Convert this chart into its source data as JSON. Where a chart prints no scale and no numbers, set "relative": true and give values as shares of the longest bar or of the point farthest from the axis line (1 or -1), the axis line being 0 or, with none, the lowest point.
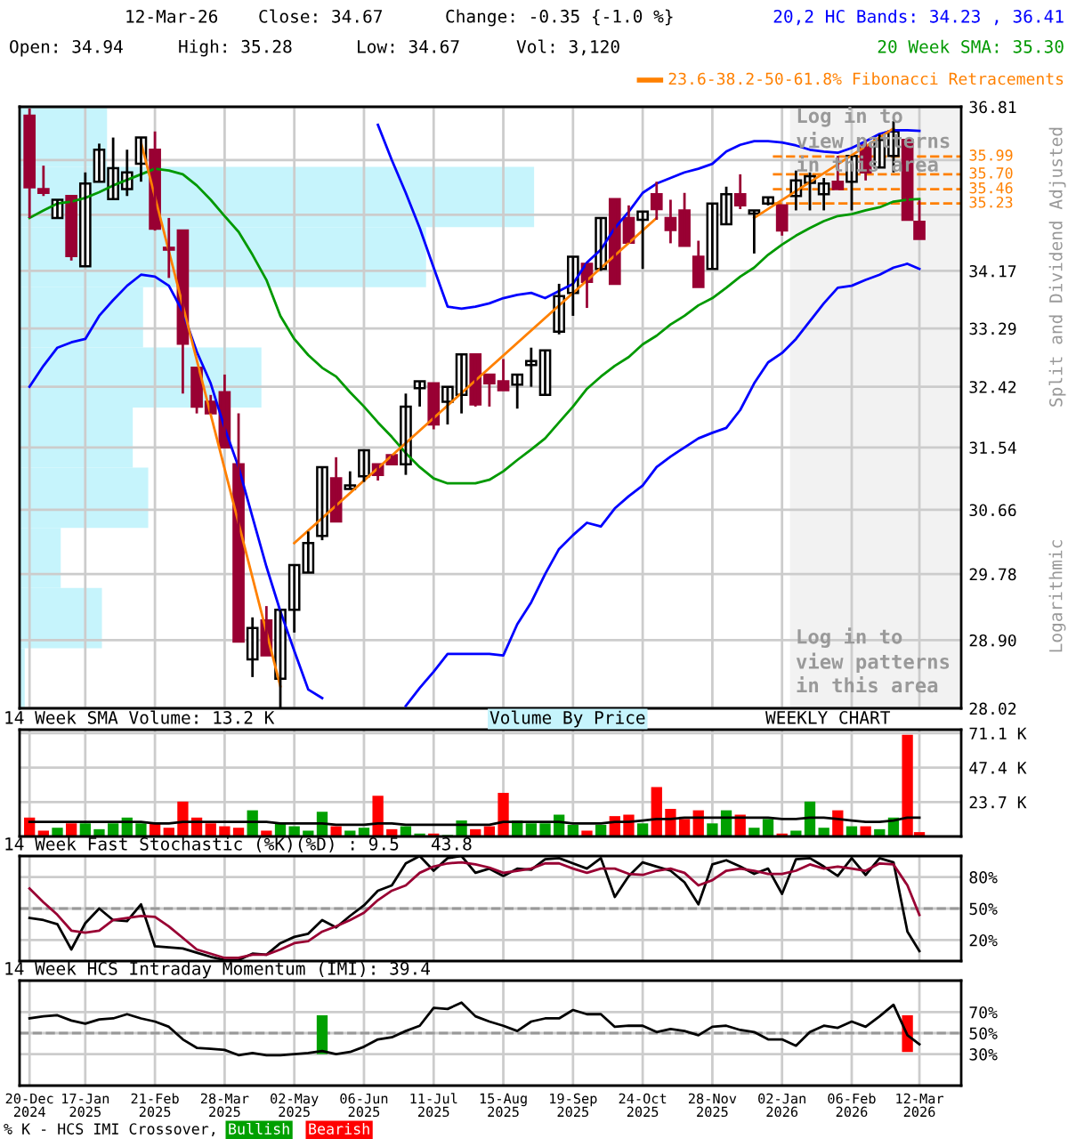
{
  "chart_data": [
    {
      "type": "candlestick",
      "colors": [
        "#990033",
        "#990033",
        "#ffffff",
        "#990033",
        "#ffffff",
        "#ffffff",
        "#ffffff",
        "#ffffff",
        "#ffffff",
        "#990033",
        "#990033",
        "#990033",
        "#990033",
        "#990033",
        "#990033",
        "#990033",
        "#ffffff",
        "#990033",
        "#ffffff",
        "#ffffff",
        "#ffffff",
        "#ffffff",
        "#990033",
        "#ffffff",
        "#ffffff",
        "#990033",
        "#990033",
        "#ffffff",
        "#ffffff",
        "#990033",
        "#ffffff",
        "#ffffff",
        "#990033",
        "#990033",
        "#990033",
        "#ffffff",
        "#ffffff",
        "#ffffff",
        "#ffffff",
        "#ffffff",
        "#990033",
        "#ffffff",
        "#990033",
        "#990033",
        "#ffffff",
        "#990033",
        "#990033",
        "#990033",
        "#990033",
        "#ffffff",
        "#ffffff",
        "#990033",
        "#ffffff",
        "#ffffff",
        "#990033",
        "#ffffff",
        "#ffffff",
        "#ffffff",
        "#990033",
        "#ffffff",
        "#990033",
        "#ffffff",
        "#ffffff",
        "#990033",
        "#990033"
      ],
      "log": true,
      "grid": true,
      "tick_labels": "y",
      "legend": "top right",
      "x": [
        "2024-12-20",
        "2024-12-27",
        "2025-01-03",
        "2025-01-10",
        "2025-01-17",
        "2025-01-24",
        "2025-01-31",
        "2025-02-07",
        "2025-02-14",
        "2025-02-21",
        "2025-02-28",
        "2025-03-07",
        "2025-03-14",
        "2025-03-21",
        "2025-03-28",
        "2025-04-04",
        "2025-04-11",
        "2025-04-18",
        "2025-04-25",
        "2025-05-02",
        "2025-05-09",
        "2025-05-16",
        "2025-05-23",
        "2025-05-30",
        "2025-06-06",
        "2025-06-13",
        "2025-06-20",
        "2025-06-27",
        "2025-07-04",
        "2025-07-11",
        "2025-07-18",
        "2025-07-25",
        "2025-08-01",
        "2025-08-08",
        "2025-08-15",
        "2025-08-22",
        "2025-08-29",
        "2025-09-05",
        "2025-09-12",
        "2025-09-19",
        "2025-09-26",
        "2025-10-03",
        "2025-10-10",
        "2025-10-17",
        "2025-10-24",
        "2025-10-31",
        "2025-11-07",
        "2025-11-14",
        "2025-11-21",
        "2025-11-28",
        "2025-12-05",
        "2025-12-12",
        "2025-12-19",
        "2025-12-26",
        "2026-01-02",
        "2026-01-09",
        "2026-01-16",
        "2026-01-23",
        "2026-01-30",
        "2026-02-06",
        "2026-02-13",
        "2026-02-20",
        "2026-02-27",
        "2026-03-06",
        "2026-03-12"
      ],
      "ohlc": [
        [
          36.66,
          36.78,
          35.0,
          35.49
        ],
        [
          35.46,
          35.84,
          35.35,
          35.4
        ],
        [
          35.0,
          35.29,
          35.0,
          35.29
        ],
        [
          35.35,
          35.35,
          34.33,
          34.4
        ],
        [
          34.24,
          35.73,
          34.24,
          35.55
        ],
        [
          35.58,
          36.2,
          35.58,
          36.1
        ],
        [
          35.3,
          36.3,
          35.3,
          35.8
        ],
        [
          35.46,
          36.1,
          35.35,
          35.73
        ],
        [
          35.87,
          36.3,
          35.58,
          36.3
        ],
        [
          36.1,
          36.4,
          34.8,
          34.83
        ],
        [
          34.53,
          35.0,
          34.06,
          34.5
        ],
        [
          34.8,
          34.8,
          32.32,
          33.06
        ],
        [
          32.7,
          32.7,
          32.03,
          32.13
        ],
        [
          32.2,
          32.3,
          32.03,
          32.03
        ],
        [
          32.34,
          32.6,
          31.54,
          31.54
        ],
        [
          31.3,
          32.03,
          28.88,
          28.88
        ],
        [
          28.65,
          29.2,
          28.42,
          29.06
        ],
        [
          29.16,
          29.35,
          28.7,
          28.7
        ],
        [
          28.4,
          29.3,
          28.03,
          29.3
        ],
        [
          29.3,
          29.9,
          29.0,
          29.9
        ],
        [
          29.8,
          30.36,
          29.8,
          30.2
        ],
        [
          30.3,
          31.26,
          30.24,
          31.26
        ],
        [
          31.1,
          31.4,
          30.5,
          30.5
        ],
        [
          30.95,
          31.2,
          30.95,
          31.0
        ],
        [
          31.13,
          31.5,
          31.05,
          31.5
        ],
        [
          31.3,
          31.3,
          31.07,
          31.15
        ],
        [
          31.43,
          31.43,
          31.3,
          31.3
        ],
        [
          31.3,
          32.32,
          31.15,
          32.13
        ],
        [
          32.4,
          32.5,
          32.13,
          32.5
        ],
        [
          32.47,
          32.47,
          31.8,
          31.87
        ],
        [
          32.2,
          32.42,
          31.87,
          32.42
        ],
        [
          32.3,
          32.9,
          32.03,
          32.9
        ],
        [
          32.9,
          32.9,
          32.13,
          32.16
        ],
        [
          32.6,
          32.6,
          32.13,
          32.47
        ],
        [
          32.5,
          32.83,
          32.37,
          32.37
        ],
        [
          32.45,
          32.6,
          32.1,
          32.6
        ],
        [
          32.74,
          33.0,
          32.42,
          32.8
        ],
        [
          32.3,
          32.96,
          32.3,
          32.96
        ],
        [
          33.24,
          33.97,
          33.2,
          33.78
        ],
        [
          33.83,
          34.39,
          33.48,
          34.39
        ],
        [
          34.28,
          34.28,
          33.6,
          34.0
        ],
        [
          34.2,
          35.0,
          34.17,
          35.0
        ],
        [
          35.3,
          35.3,
          33.97,
          33.97
        ],
        [
          35.0,
          35.2,
          34.61,
          34.61
        ],
        [
          34.97,
          35.1,
          34.2,
          35.1
        ],
        [
          35.38,
          35.58,
          34.97,
          35.14
        ],
        [
          35.0,
          35.29,
          34.6,
          34.81
        ],
        [
          35.12,
          35.4,
          34.56,
          34.56
        ],
        [
          34.39,
          34.64,
          33.92,
          33.92
        ],
        [
          34.2,
          35.23,
          34.2,
          35.23
        ],
        [
          34.9,
          35.5,
          34.9,
          35.38
        ],
        [
          35.38,
          35.7,
          35.14,
          35.2
        ],
        [
          35.07,
          35.12,
          34.44,
          35.12
        ],
        [
          35.23,
          35.33,
          35.2,
          35.33
        ],
        [
          35.2,
          35.2,
          34.72,
          34.8
        ],
        [
          35.35,
          35.76,
          35.12,
          35.6
        ],
        [
          35.56,
          35.73,
          35.12,
          35.67
        ],
        [
          35.38,
          35.64,
          35.12,
          35.55
        ],
        [
          35.58,
          36.0,
          35.46,
          35.46
        ],
        [
          35.58,
          36.0,
          35.12,
          36.0
        ],
        [
          36.17,
          36.26,
          35.6,
          35.73
        ],
        [
          35.81,
          36.35,
          35.81,
          36.26
        ],
        [
          36.0,
          36.57,
          35.73,
          36.4
        ],
        [
          36.26,
          36.26,
          34.97,
          34.97
        ],
        [
          34.94,
          35.28,
          34.67,
          34.67
        ]
      ],
      "ylim": [
        28.02,
        36.81
      ],
      "yticks": [
        28.02,
        {
          "value": 28.9,
          "label": "28.90"
        },
        29.78,
        30.66,
        31.54,
        32.42,
        33.29,
        34.17,
        {
          "value": 35.05,
          "label": null
        },
        {
          "value": 35.93,
          "label": null
        },
        36.81
      ],
      "xlim": [
        "2024-12-15",
        "2026-04-02"
      ],
      "xticks": [
        {
          "value": "2024-12-20",
          "label": null
        },
        {
          "value": "2025-01-17",
          "label": null
        },
        {
          "value": "2025-02-21",
          "label": null
        },
        {
          "value": "2025-03-28",
          "label": null
        },
        {
          "value": "2025-05-02",
          "label": null
        },
        {
          "value": "2025-06-06",
          "label": null
        },
        {
          "value": "2025-07-11",
          "label": null
        },
        {
          "value": "2025-08-15",
          "label": null
        },
        {
          "value": "2025-09-19",
          "label": null
        },
        {
          "value": "2025-10-24",
          "label": null
        },
        {
          "value": "2025-11-28",
          "label": null
        },
        {
          "value": "2026-01-02",
          "label": null
        },
        {
          "value": "2026-02-06",
          "label": null
        },
        {
          "value": "2026-03-12",
          "label": null
        }
      ],
      "series": [
        {
          "type": "line",
          "name": "20,2 HC Bands: 34.23 , 36.41",
          "color": "#0000ff",
          "values": [
            null,
            null,
            null,
            null,
            null,
            null,
            null,
            null,
            null,
            null,
            null,
            null,
            null,
            null,
            null,
            null,
            null,
            null,
            null,
            null,
            null,
            null,
            null,
            null,
            null,
            36.51,
            35.93,
            35.4,
            34.84,
            34.22,
            33.62,
            33.59,
            33.62,
            33.67,
            33.75,
            33.8,
            33.83,
            33.75,
            33.86,
            33.97,
            34.3,
            34.5,
            34.84,
            35.1,
            35.4,
            35.55,
            35.64,
            35.73,
            35.79,
            35.87,
            36.07,
            36.18,
            36.24,
            36.24,
            36.22,
            36.17,
            36.1,
            36.07,
            36.05,
            36.13,
            36.24,
            36.36,
            36.42,
            36.42,
            36.41
          ]
        },
        {
          "type": "line",
          "color": "#0000ff",
          "values": [
            32.42,
            32.73,
            33.0,
            33.08,
            33.13,
            33.48,
            33.72,
            33.94,
            34.11,
            34.08,
            33.94,
            33.54,
            32.94,
            32.47,
            31.82,
            31.26,
            30.56,
            29.88,
            29.28,
            28.76,
            28.26,
            28.15,
            null,
            null,
            null,
            null,
            null,
            28.05,
            28.28,
            28.49,
            28.72,
            28.72,
            28.72,
            28.72,
            28.7,
            29.11,
            29.4,
            29.78,
            30.12,
            30.31,
            30.48,
            30.43,
            30.68,
            30.85,
            31.0,
            31.26,
            31.41,
            31.54,
            31.67,
            31.75,
            31.82,
            32.08,
            32.47,
            32.78,
            32.92,
            33.13,
            33.4,
            33.67,
            33.91,
            33.94,
            34.03,
            34.11,
            34.22,
            34.28,
            34.2
          ]
        },
        {
          "type": "line",
          "name": "20 Week SMA: 35.30",
          "color": "#009900",
          "values": [
            35.0,
            35.12,
            35.23,
            35.26,
            35.32,
            35.41,
            35.52,
            35.61,
            35.7,
            35.79,
            35.76,
            35.7,
            35.52,
            35.29,
            35.03,
            34.78,
            34.42,
            34.03,
            33.48,
            33.13,
            32.89,
            32.7,
            32.57,
            32.34,
            32.13,
            31.9,
            31.69,
            31.46,
            31.26,
            31.1,
            31.03,
            31.03,
            31.03,
            31.08,
            31.2,
            31.36,
            31.51,
            31.67,
            31.9,
            32.13,
            32.39,
            32.57,
            32.73,
            32.86,
            33.05,
            33.18,
            33.35,
            33.48,
            33.64,
            33.75,
            33.91,
            34.08,
            34.22,
            34.42,
            34.58,
            34.72,
            34.84,
            34.95,
            35.03,
            35.06,
            35.12,
            35.17,
            35.26,
            35.29,
            35.3
          ]
        },
        {
          "type": "line",
          "name": "23.6-38.2-50-61.8% Fibonacci Retracements",
          "color": "#ff8000",
          "x": [
            "2025-02-14",
            "2025-04-25"
          ],
          "values": [
            36.22,
            28.3
          ]
        },
        {
          "type": "line",
          "color": "#ff8000",
          "x": [
            "2025-05-02",
            "2025-10-31"
          ],
          "values": [
            30.2,
            35.0
          ]
        },
        {
          "type": "line",
          "color": "#ff8000",
          "x": [
            "2025-12-19",
            "2026-02-27"
          ],
          "values": [
            35.0,
            36.45
          ]
        }
      ],
      "ref_lines": [
        {
          "axis": "y",
          "value": 35.99,
          "label": "35.99",
          "color": "#ff8000",
          "line_style": "dashed"
        },
        {
          "axis": "y",
          "value": 35.7,
          "label": "35.70",
          "color": "#ff8000",
          "line_style": "dashed"
        },
        {
          "axis": "y",
          "value": 35.46,
          "label": "35.46",
          "color": "#ff8000",
          "line_style": "dashed"
        },
        {
          "axis": "y",
          "value": 35.23,
          "label": "35.23",
          "color": "#ff8000",
          "line_style": "dashed"
        }
      ],
      "bands": [
        {
          "axis": "x",
          "from": "2026-01-06",
          "to": "2026-04-02",
          "label": "Log in to\nview patterns\nin this area",
          "color": "#f2f2f2"
        }
      ],
      "annotations": [
        "12-Mar-26",
        "Close: 34.67",
        "Change: -0.35 {-1.0 %}",
        "Open: 34.94",
        "High: 35.28",
        "Low: 34.67",
        "Vol: 3,120",
        "Split and Dividend Adjusted",
        "Logarithmic",
        "Log in to\nview patterns\nin this area"
      ]
    },
    {
      "type": "bar",
      "orientation": "horizontal",
      "relative": true,
      "title": "Volume By Price",
      "color": "#c6f4fc",
      "categories": [
        null,
        null,
        null,
        null,
        null,
        null,
        null,
        null,
        null,
        null
      ],
      "values": [
        0.17,
        1,
        0.79,
        0.24,
        0.47,
        0.22,
        0.25,
        0.08,
        0.16,
        0.01
      ]
    },
    {
      "type": "bar",
      "title": "14 Week SMA Volume: 13.2 K",
      "grid": true,
      "tick_labels": "y",
      "x": [
        "2024-12-20",
        "2024-12-27",
        "2025-01-03",
        "2025-01-10",
        "2025-01-17",
        "2025-01-24",
        "2025-01-31",
        "2025-02-07",
        "2025-02-14",
        "2025-02-21",
        "2025-02-28",
        "2025-03-07",
        "2025-03-14",
        "2025-03-21",
        "2025-03-28",
        "2025-04-04",
        "2025-04-11",
        "2025-04-18",
        "2025-04-25",
        "2025-05-02",
        "2025-05-09",
        "2025-05-16",
        "2025-05-23",
        "2025-05-30",
        "2025-06-06",
        "2025-06-13",
        "2025-06-20",
        "2025-06-27",
        "2025-07-04",
        "2025-07-11",
        "2025-07-18",
        "2025-07-25",
        "2025-08-01",
        "2025-08-08",
        "2025-08-15",
        "2025-08-22",
        "2025-08-29",
        "2025-09-05",
        "2025-09-12",
        "2025-09-19",
        "2025-09-26",
        "2025-10-03",
        "2025-10-10",
        "2025-10-17",
        "2025-10-24",
        "2025-10-31",
        "2025-11-07",
        "2025-11-14",
        "2025-11-21",
        "2025-11-28",
        "2025-12-05",
        "2025-12-12",
        "2025-12-19",
        "2025-12-26",
        "2026-01-02",
        "2026-01-09",
        "2026-01-16",
        "2026-01-23",
        "2026-01-30",
        "2026-02-06",
        "2026-02-13",
        "2026-02-20",
        "2026-02-27",
        "2026-03-06",
        "2026-03-12"
      ],
      "series": [
        {
          "type": "bar",
          "values": [
            13,
            4,
            6,
            9,
            9,
            5,
            9,
            13,
            9,
            9,
            6,
            24,
            13,
            9,
            7,
            6,
            18,
            4,
            9,
            7,
            4,
            17,
            7,
            4,
            6,
            28,
            5,
            7,
            2,
            2,
            1,
            11,
            5,
            7,
            30,
            11,
            9,
            9,
            15,
            8,
            4,
            8,
            14,
            15,
            9,
            34,
            19,
            12,
            18,
            9,
            18,
            15,
            6,
            12,
            2,
            4,
            24,
            6,
            18,
            7,
            7,
            5,
            13,
            70,
            3
          ],
          "colors": [
            "#ff0000",
            "#ff0000",
            "#00a000",
            "#ff0000",
            "#00a000",
            "#00a000",
            "#00a000",
            "#00a000",
            "#00a000",
            "#ff0000",
            "#ff0000",
            "#ff0000",
            "#ff0000",
            "#ff0000",
            "#ff0000",
            "#ff0000",
            "#00a000",
            "#ff0000",
            "#00a000",
            "#00a000",
            "#00a000",
            "#00a000",
            "#ff0000",
            "#00a000",
            "#00a000",
            "#ff0000",
            "#ff0000",
            "#00a000",
            "#00a000",
            "#ff0000",
            "#00a000",
            "#00a000",
            "#ff0000",
            "#ff0000",
            "#ff0000",
            "#00a000",
            "#00a000",
            "#00a000",
            "#00a000",
            "#00a000",
            "#ff0000",
            "#00a000",
            "#ff0000",
            "#ff0000",
            "#00a000",
            "#ff0000",
            "#ff0000",
            "#ff0000",
            "#ff0000",
            "#00a000",
            "#00a000",
            "#ff0000",
            "#00a000",
            "#00a000",
            "#ff0000",
            "#00a000",
            "#00a000",
            "#00a000",
            "#ff0000",
            "#00a000",
            "#ff0000",
            "#00a000",
            "#00a000",
            "#ff0000",
            "#ff0000"
          ]
        },
        {
          "type": "line",
          "color": "#000000",
          "values": [
            10,
            10,
            10,
            10,
            10,
            10,
            10,
            10,
            10,
            9,
            9,
            10,
            10,
            10,
            10,
            10,
            10,
            10,
            9,
            9,
            9,
            9,
            8,
            8,
            8,
            9,
            9,
            8,
            8,
            8,
            8,
            8,
            8,
            8,
            10,
            10,
            10,
            10,
            10,
            9,
            9,
            9,
            10,
            10,
            11,
            12,
            12,
            13,
            13,
            13,
            13,
            13,
            13,
            13,
            12,
            12,
            13,
            13,
            12,
            11,
            10,
            10,
            11,
            13,
            13
          ]
        }
      ],
      "ylim": [
        0,
        73.5
      ],
      "yticks": [
        {
          "value": 23.7,
          "label": "23.7 K"
        },
        {
          "value": 47.4,
          "label": "47.4 K"
        },
        {
          "value": 71.1,
          "label": "71.1 K"
        }
      ],
      "xlim": [
        "2024-12-15",
        "2026-04-02"
      ],
      "xticks": [
        {
          "value": "2024-12-20",
          "label": null
        },
        {
          "value": "2025-01-17",
          "label": null
        },
        {
          "value": "2025-02-21",
          "label": null
        },
        {
          "value": "2025-03-28",
          "label": null
        },
        {
          "value": "2025-05-02",
          "label": null
        },
        {
          "value": "2025-06-06",
          "label": null
        },
        {
          "value": "2025-07-11",
          "label": null
        },
        {
          "value": "2025-08-15",
          "label": null
        },
        {
          "value": "2025-09-19",
          "label": null
        },
        {
          "value": "2025-10-24",
          "label": null
        },
        {
          "value": "2025-11-28",
          "label": null
        },
        {
          "value": "2026-01-02",
          "label": null
        },
        {
          "value": "2026-02-06",
          "label": null
        },
        {
          "value": "2026-03-12",
          "label": null
        }
      ],
      "annotations": [
        "WEEKLY CHART"
      ]
    },
    {
      "type": "line",
      "title": "14 Week Fast Stochastic (%K)(%D) : 9.5   43.8",
      "grid": true,
      "tick_labels": "y",
      "x": [
        "2024-12-20",
        "2024-12-27",
        "2025-01-03",
        "2025-01-10",
        "2025-01-17",
        "2025-01-24",
        "2025-01-31",
        "2025-02-07",
        "2025-02-14",
        "2025-02-21",
        "2025-02-28",
        "2025-03-07",
        "2025-03-14",
        "2025-03-21",
        "2025-03-28",
        "2025-04-04",
        "2025-04-11",
        "2025-04-18",
        "2025-04-25",
        "2025-05-02",
        "2025-05-09",
        "2025-05-16",
        "2025-05-23",
        "2025-05-30",
        "2025-06-06",
        "2025-06-13",
        "2025-06-20",
        "2025-06-27",
        "2025-07-04",
        "2025-07-11",
        "2025-07-18",
        "2025-07-25",
        "2025-08-01",
        "2025-08-08",
        "2025-08-15",
        "2025-08-22",
        "2025-08-29",
        "2025-09-05",
        "2025-09-12",
        "2025-09-19",
        "2025-09-26",
        "2025-10-03",
        "2025-10-10",
        "2025-10-17",
        "2025-10-24",
        "2025-10-31",
        "2025-11-07",
        "2025-11-14",
        "2025-11-21",
        "2025-11-28",
        "2025-12-05",
        "2025-12-12",
        "2025-12-19",
        "2025-12-26",
        "2026-01-02",
        "2026-01-09",
        "2026-01-16",
        "2026-01-23",
        "2026-01-30",
        "2026-02-06",
        "2026-02-13",
        "2026-02-20",
        "2026-02-27",
        "2026-03-06",
        "2026-03-12"
      ],
      "series": [
        {
          "type": "line",
          "color": "#000000",
          "values": [
            41,
            39,
            35,
            11,
            36,
            50,
            39,
            38,
            54,
            14,
            13,
            12,
            8,
            4,
            1,
            1,
            7,
            6,
            17,
            23,
            26,
            39,
            32,
            43,
            53,
            67,
            72,
            93,
            100,
            86,
            98,
            100,
            84,
            88,
            81,
            88,
            87,
            97,
            98,
            93,
            88,
            98,
            61,
            81,
            94,
            90,
            86,
            75,
            54,
            92,
            96,
            90,
            83,
            88,
            64,
            97,
            98,
            90,
            81,
            98,
            82,
            98,
            94,
            28,
            9.5
          ]
        },
        {
          "type": "line",
          "color": "#990033",
          "values": [
            69,
            56,
            44,
            29,
            27,
            29,
            39,
            41,
            43,
            42,
            33,
            22,
            11,
            7,
            3,
            3,
            6,
            6,
            11,
            17,
            19,
            28,
            33,
            39,
            46,
            58,
            67,
            72,
            84,
            90,
            93,
            94,
            92,
            89,
            84,
            86,
            88,
            93,
            93,
            88,
            84,
            88,
            88,
            83,
            82,
            86,
            88,
            84,
            72,
            77,
            86,
            88,
            86,
            83,
            83,
            86,
            92,
            88,
            90,
            88,
            86,
            93,
            92,
            72,
            43.8
          ]
        }
      ],
      "ylim": [
        0,
        100
      ],
      "yticks": [
        {
          "value": 20,
          "label": "20%"
        },
        {
          "value": 50,
          "label": "50%"
        },
        {
          "value": 80,
          "label": "80%"
        }
      ],
      "ref_lines": [
        {
          "axis": "y",
          "value": 50,
          "color": "#999999",
          "line_style": "dashed"
        }
      ],
      "xlim": [
        "2024-12-15",
        "2026-04-02"
      ],
      "xticks": [
        {
          "value": "2024-12-20",
          "label": null
        },
        {
          "value": "2025-01-17",
          "label": null
        },
        {
          "value": "2025-02-21",
          "label": null
        },
        {
          "value": "2025-03-28",
          "label": null
        },
        {
          "value": "2025-05-02",
          "label": null
        },
        {
          "value": "2025-06-06",
          "label": null
        },
        {
          "value": "2025-07-11",
          "label": null
        },
        {
          "value": "2025-08-15",
          "label": null
        },
        {
          "value": "2025-09-19",
          "label": null
        },
        {
          "value": "2025-10-24",
          "label": null
        },
        {
          "value": "2025-11-28",
          "label": null
        },
        {
          "value": "2026-01-02",
          "label": null
        },
        {
          "value": "2026-02-06",
          "label": null
        },
        {
          "value": "2026-03-12",
          "label": null
        }
      ]
    },
    {
      "type": "line",
      "title": "14 Week HCS Intraday Momentum (IMI): 39.4",
      "grid": true,
      "legend": "bottom",
      "legend_title": "% K - HCS IMI Crossover,",
      "x": [
        "2024-12-20",
        "2024-12-27",
        "2025-01-03",
        "2025-01-10",
        "2025-01-17",
        "2025-01-24",
        "2025-01-31",
        "2025-02-07",
        "2025-02-14",
        "2025-02-21",
        "2025-02-28",
        "2025-03-07",
        "2025-03-14",
        "2025-03-21",
        "2025-03-28",
        "2025-04-04",
        "2025-04-11",
        "2025-04-18",
        "2025-04-25",
        "2025-05-02",
        "2025-05-09",
        "2025-05-16",
        "2025-05-23",
        "2025-05-30",
        "2025-06-06",
        "2025-06-13",
        "2025-06-20",
        "2025-06-27",
        "2025-07-04",
        "2025-07-11",
        "2025-07-18",
        "2025-07-25",
        "2025-08-01",
        "2025-08-08",
        "2025-08-15",
        "2025-08-22",
        "2025-08-29",
        "2025-09-05",
        "2025-09-12",
        "2025-09-19",
        "2025-09-26",
        "2025-10-03",
        "2025-10-10",
        "2025-10-17",
        "2025-10-24",
        "2025-10-31",
        "2025-11-07",
        "2025-11-14",
        "2025-11-21",
        "2025-11-28",
        "2025-12-05",
        "2025-12-12",
        "2025-12-19",
        "2025-12-26",
        "2026-01-02",
        "2026-01-09",
        "2026-01-16",
        "2026-01-23",
        "2026-01-30",
        "2026-02-06",
        "2026-02-13",
        "2026-02-20",
        "2026-02-27",
        "2026-03-06",
        "2026-03-12"
      ],
      "series": [
        {
          "type": "bar",
          "name": "Bullish",
          "color": "#00a000",
          "x": [
            "2025-05-16"
          ],
          "base": [
            30
          ],
          "values": [
            37
          ]
        },
        {
          "type": "bar",
          "name": "Bearish",
          "color": "#ff0000",
          "x": [
            "2026-03-06"
          ],
          "base": [
            32
          ],
          "values": [
            35
          ]
        },
        {
          "type": "line",
          "color": "#000000",
          "values": [
            64,
            66,
            67,
            62,
            59,
            63,
            64,
            68,
            64,
            61,
            56,
            44,
            36,
            35,
            34,
            29,
            31,
            29,
            29,
            30,
            31,
            33,
            30,
            32,
            37,
            44,
            46,
            52,
            57,
            74,
            73,
            79,
            66,
            61,
            57,
            52,
            61,
            64,
            64,
            72,
            68,
            68,
            56,
            57,
            57,
            51,
            54,
            52,
            48,
            56,
            57,
            53,
            51,
            44,
            44,
            38,
            51,
            57,
            55,
            61,
            56,
            66,
            77,
            48,
            39.4
          ]
        }
      ],
      "ylim": [
        0,
        100
      ],
      "yticks": [
        {
          "value": 30,
          "label": "30%"
        },
        {
          "value": 50,
          "label": "50%"
        },
        {
          "value": 70,
          "label": "70%"
        }
      ],
      "ref_lines": [
        {
          "axis": "y",
          "value": 50,
          "color": "#999999",
          "line_style": "dashed"
        }
      ],
      "xlim": [
        "2024-12-15",
        "2026-04-02"
      ],
      "xticks": [
        {
          "value": "2024-12-20",
          "label": "20-Dec\n2024"
        },
        {
          "value": "2025-01-17",
          "label": "17-Jan\n2025"
        },
        {
          "value": "2025-02-21",
          "label": "21-Feb\n2025"
        },
        {
          "value": "2025-03-28",
          "label": "28-Mar\n2025"
        },
        {
          "value": "2025-05-02",
          "label": "02-May\n2025"
        },
        {
          "value": "2025-06-06",
          "label": "06-Jun\n2025"
        },
        {
          "value": "2025-07-11",
          "label": "11-Jul\n2025"
        },
        {
          "value": "2025-08-15",
          "label": "15-Aug\n2025"
        },
        {
          "value": "2025-09-19",
          "label": "19-Sep\n2025"
        },
        {
          "value": "2025-10-24",
          "label": "24-Oct\n2025"
        },
        {
          "value": "2025-11-28",
          "label": "28-Nov\n2025"
        },
        {
          "value": "2026-01-02",
          "label": "02-Jan\n2026"
        },
        {
          "value": "2026-02-06",
          "label": "06-Feb\n2026"
        },
        {
          "value": "2026-03-12",
          "label": "12-Mar\n2026"
        }
      ]
    }
  ]
}
